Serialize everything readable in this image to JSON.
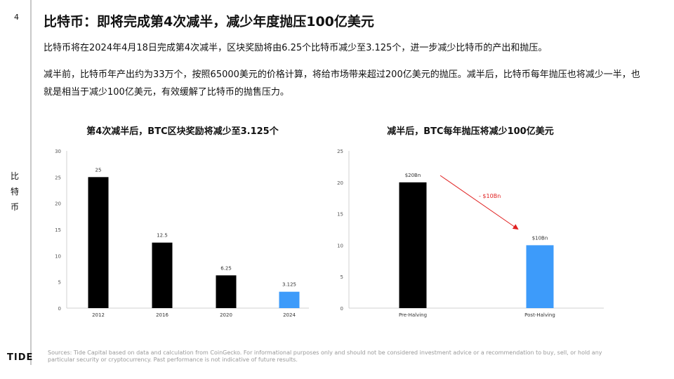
{
  "page_number": "4",
  "side_label": "比特币",
  "title": "比特币：即将完成第4次减半，减少年度抛压100亿美元",
  "paragraphs": [
    "比特币将在2024年4月18日完成第4次减半，区块奖励将由6.25个比特币减少至3.125个，进一步减少比特币的产出和抛压。",
    "减半前，比特币年产出约为33万个，按照65000美元的价格计算，将给市场带来超过200亿美元的抛压。减半后，比特币每年抛压也将减少一半，也就是相当于减少100亿美元，有效缓解了比特币的抛售压力。"
  ],
  "chart_data": [
    {
      "type": "bar",
      "title": "第4次减半后，BTC区块奖励将减少至3.125个",
      "categories": [
        "2012",
        "2016",
        "2020",
        "2024"
      ],
      "values": [
        25,
        12.5,
        6.25,
        3.125
      ],
      "data_labels": [
        "25",
        "12.5",
        "6.25",
        "3.125"
      ],
      "colors": [
        "#000000",
        "#000000",
        "#000000",
        "#3d9bfa"
      ],
      "ylim": [
        0,
        30
      ],
      "yticks": [
        0,
        5,
        10,
        15,
        20,
        25,
        30
      ],
      "grid": false
    },
    {
      "type": "bar",
      "title": "减半后，BTC每年抛压将减少100亿美元",
      "categories": [
        "Pre-Halving",
        "Post-Halving"
      ],
      "values": [
        20,
        10
      ],
      "data_labels": [
        "$20Bn",
        "$10Bn"
      ],
      "colors": [
        "#000000",
        "#3d9bfa"
      ],
      "ylim": [
        0,
        25
      ],
      "yticks": [
        0,
        5,
        10,
        15,
        20,
        25
      ],
      "grid": false,
      "annotation": {
        "text": "- $10Bn",
        "color": "#e02020"
      }
    }
  ],
  "logo": "TIDE",
  "footer": "Sources: Tide Capital based on data and calculation from CoinGecko. For informational purposes only and should not be considered investment advice or a recommendation to buy, sell, or hold any particular security or cryptocurrency. Past performance is not indicative of future results."
}
